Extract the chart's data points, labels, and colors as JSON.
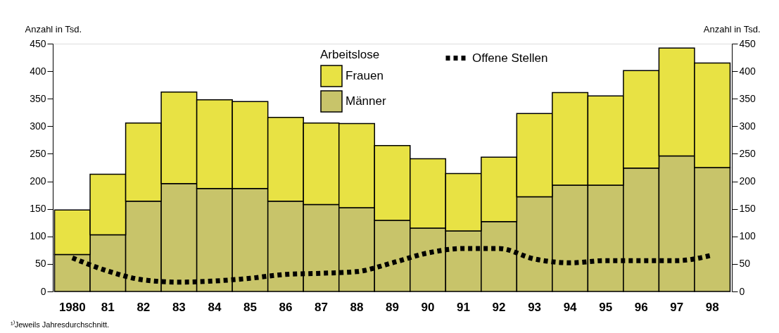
{
  "chart_data": {
    "type": "bar",
    "stacked": true,
    "ylabel": "Anzahl in Tsd.",
    "y2label": "Anzahl in Tsd.",
    "legend_title": "Arbeitslose",
    "categories": [
      "1980",
      "81",
      "82",
      "83",
      "84",
      "85",
      "86",
      "87",
      "88",
      "89",
      "90",
      "91",
      "92",
      "93",
      "94",
      "95",
      "96",
      "97",
      "98"
    ],
    "series": [
      {
        "name": "Männer",
        "color": "#c8c46a",
        "values": [
          67,
          103,
          164,
          196,
          187,
          187,
          164,
          158,
          152,
          129,
          115,
          110,
          127,
          172,
          193,
          193,
          224,
          246,
          225
        ]
      },
      {
        "name": "Frauen",
        "color": "#e8e244",
        "values": [
          81,
          110,
          142,
          166,
          161,
          158,
          152,
          148,
          153,
          136,
          126,
          104,
          117,
          151,
          168,
          162,
          177,
          196,
          190
        ]
      },
      {
        "name": "Offene Stellen",
        "type": "line",
        "color": "#000000",
        "line_style": "dotted",
        "values": [
          61,
          37,
          21,
          17,
          19,
          24,
          31,
          33,
          36,
          52,
          70,
          78,
          78,
          59,
          52,
          56,
          56,
          56,
          66
        ]
      }
    ],
    "ylim": [
      0,
      450
    ],
    "yticks": [
      0,
      50,
      100,
      150,
      200,
      250,
      300,
      350,
      400,
      450
    ],
    "y2lim": [
      0,
      450
    ],
    "y2ticks": [
      0,
      50,
      100,
      150,
      200,
      250,
      300,
      350,
      400,
      450
    ],
    "grid": false,
    "legend": "top",
    "annotations": [
      "¹⁾Jeweils Jahresdurchschnitt."
    ]
  }
}
